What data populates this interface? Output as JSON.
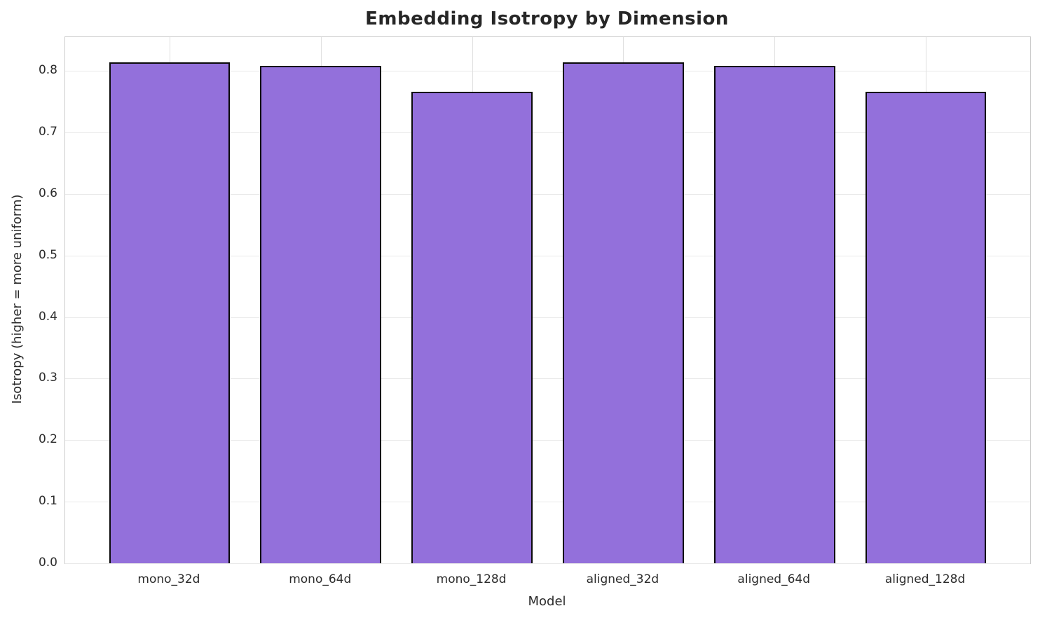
{
  "chart_data": {
    "type": "bar",
    "title": "Embedding Isotropy by Dimension",
    "xlabel": "Model",
    "ylabel": "Isotropy (higher = more uniform)",
    "categories": [
      "mono_32d",
      "mono_64d",
      "mono_128d",
      "aligned_32d",
      "aligned_64d",
      "aligned_128d"
    ],
    "values": [
      0.814,
      0.808,
      0.766,
      0.814,
      0.808,
      0.766
    ],
    "ylim": [
      0,
      0.855
    ],
    "yticks": [
      0.0,
      0.1,
      0.2,
      0.3,
      0.4,
      0.5,
      0.6,
      0.7,
      0.8
    ],
    "ytick_labels": [
      "0.0",
      "0.1",
      "0.2",
      "0.3",
      "0.4",
      "0.5",
      "0.6",
      "0.7",
      "0.8"
    ],
    "grid": true,
    "legend_position": "none",
    "bar_fill_color": "#9370DB",
    "bar_edge_color": "#0a0a0a",
    "grid_color": "#e9e9e9",
    "spine_color": "#cccccc",
    "text_color": "#2b2b2b"
  }
}
